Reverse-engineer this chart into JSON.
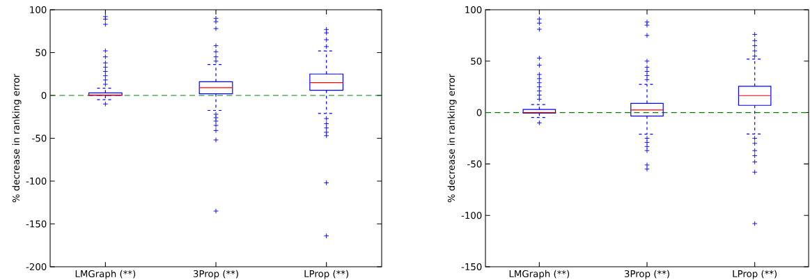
{
  "chart_data": [
    {
      "type": "box",
      "ylabel": "% decrease in ranking error",
      "categories": [
        "LMGraph (**)",
        "3Prop (**)",
        "LProp (**)"
      ],
      "color": "#0000ff",
      "marker": "cross",
      "ylim": [
        -200,
        100
      ],
      "yticks": [
        -200,
        -150,
        -100,
        -50,
        0,
        50,
        100
      ],
      "boxes": [
        {
          "low": -5,
          "q1": 0,
          "median": 0.5,
          "q3": 3,
          "high": 8.5,
          "outliers": [
            92,
            89,
            83,
            52,
            45,
            38,
            33,
            28,
            23,
            18,
            13,
            -10
          ]
        },
        {
          "low": -17.5,
          "q1": 2,
          "median": 9,
          "q3": 16,
          "high": 36,
          "outliers": [
            90,
            86,
            78,
            58,
            51,
            45,
            40,
            -22,
            -26,
            -30,
            -35,
            -41,
            -52,
            -135
          ]
        },
        {
          "low": -21,
          "q1": 6,
          "median": 15,
          "q3": 25,
          "high": 52,
          "outliers": [
            77,
            73,
            65,
            57,
            -27,
            -33,
            -38,
            -43,
            -47,
            -102,
            -164
          ]
        }
      ],
      "ref_lines": [
        {
          "axis": "y",
          "value": 0,
          "color": "#008000",
          "line_style": "dashed"
        }
      ]
    },
    {
      "type": "box",
      "ylabel": "% decrease in ranking error",
      "categories": [
        "LMGraph (**)",
        "3Prop (**)",
        "LProp (**)"
      ],
      "color": "#0000ff",
      "marker": "cross",
      "ylim": [
        -150,
        100
      ],
      "yticks": [
        -150,
        -100,
        -50,
        0,
        50,
        100
      ],
      "boxes": [
        {
          "low": -4.7,
          "q1": -0.5,
          "median": 0,
          "q3": 3,
          "high": 7.7,
          "outliers": [
            91,
            87,
            81,
            53,
            46,
            37,
            33,
            29,
            25,
            21,
            17,
            13,
            -10
          ]
        },
        {
          "low": -21,
          "q1": -3.4,
          "median": 2.5,
          "q3": 9,
          "high": 27.4,
          "outliers": [
            88,
            85,
            75,
            50,
            44,
            40,
            36,
            32,
            -25,
            -29,
            -33,
            -37,
            -51,
            -55
          ]
        },
        {
          "low": -20.8,
          "q1": 7,
          "median": 16.5,
          "q3": 25.6,
          "high": 52,
          "outliers": [
            76,
            70,
            65,
            60,
            55,
            -25,
            -30,
            -37,
            -42,
            -48,
            -58,
            -108
          ]
        }
      ],
      "ref_lines": [
        {
          "axis": "y",
          "value": 0,
          "color": "#008000",
          "line_style": "dashed"
        }
      ]
    }
  ]
}
